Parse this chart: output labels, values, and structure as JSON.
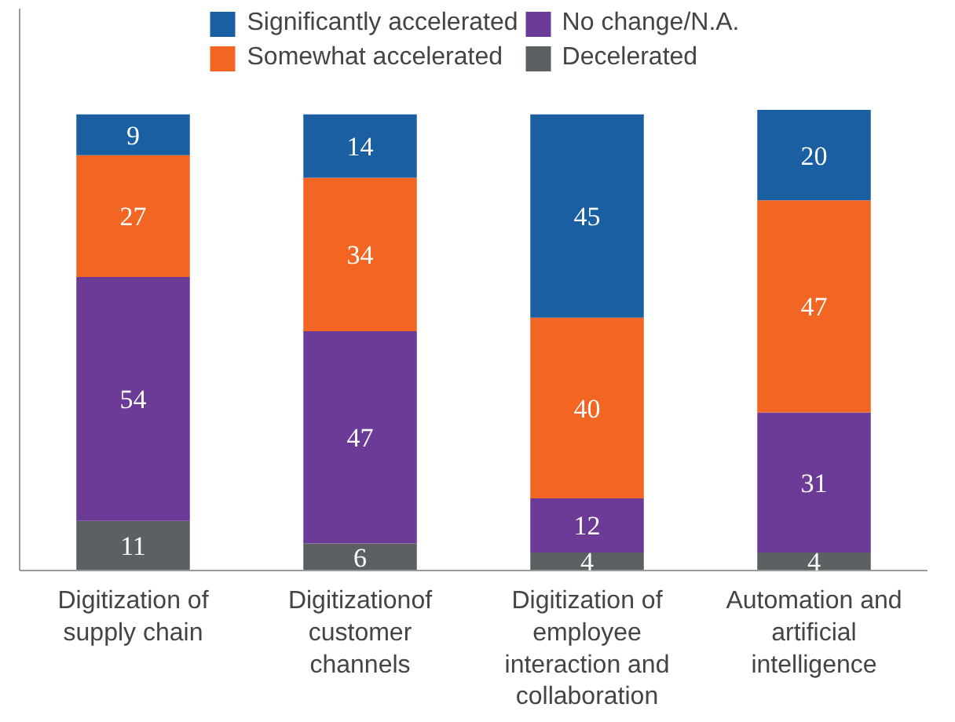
{
  "chart_data": {
    "type": "bar",
    "stacked": true,
    "data_labels": true,
    "legend": "top",
    "grid": false,
    "categories": [
      "Digitization of supply chain",
      "Digitizationof customer channels",
      "Digitization of employee interaction and collaboration",
      "Automation and artificial intelligence"
    ],
    "series": [
      {
        "name": "Decelerated",
        "color": "#5b6063",
        "values": [
          11,
          6,
          4,
          4
        ]
      },
      {
        "name": "No change/N.A.",
        "color": "#6c3a97",
        "values": [
          54,
          47,
          12,
          31
        ]
      },
      {
        "name": "Somewhat accelerated",
        "color": "#f26522",
        "values": [
          27,
          34,
          40,
          47
        ]
      },
      {
        "name": "Significantly accelerated",
        "color": "#1b5fa3",
        "values": [
          9,
          14,
          45,
          20
        ]
      }
    ]
  }
}
